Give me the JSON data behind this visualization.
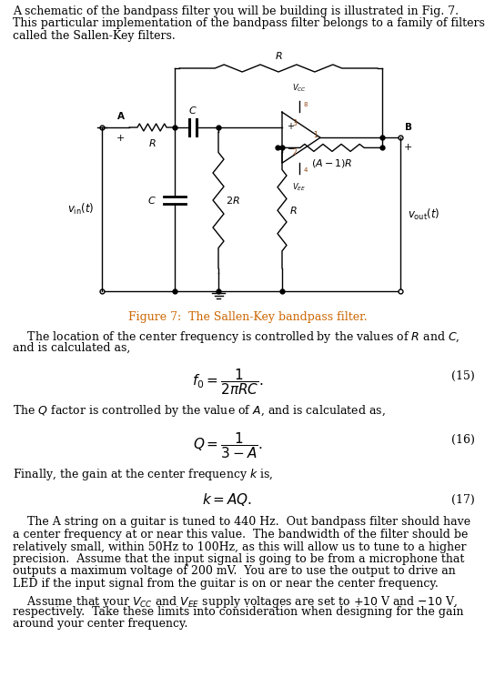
{
  "background_color": "#ffffff",
  "text_color": "#000000",
  "fig_caption_color": "#cc6600",
  "fig_caption": "Figure 7:  The Sallen-Key bandpass filter.",
  "eq15_label": "(15)",
  "eq16_label": "(16)",
  "eq17_label": "(17)"
}
